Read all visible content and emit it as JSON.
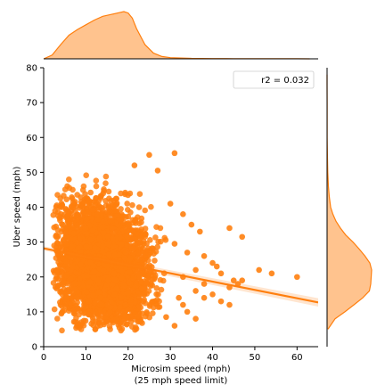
{
  "chart_data": {
    "type": "scatter",
    "title": "",
    "xlabel": "Microsim speed (mph)",
    "xlabel_line2": "(25 mph speed limit)",
    "ylabel": "Uber speed (mph)",
    "xlim": [
      0,
      65
    ],
    "ylim": [
      0,
      80
    ],
    "xticks": [
      0,
      10,
      20,
      30,
      40,
      50,
      60
    ],
    "yticks": [
      0,
      10,
      20,
      30,
      40,
      50,
      60,
      70,
      80
    ],
    "grid": false,
    "color": "#ff7f0e",
    "kde_fill_color": "#ffc38e",
    "legend": {
      "text": "r2 = 0.032",
      "placement": "top-right"
    },
    "cluster": {
      "description_points": "dense scatter concentrated at x 2-28, y 4-50",
      "x_range": [
        2,
        28
      ],
      "y_range": [
        4,
        50
      ]
    },
    "outliers": [
      {
        "x": 31,
        "y": 55.5
      },
      {
        "x": 25,
        "y": 55
      },
      {
        "x": 27,
        "y": 50.5
      },
      {
        "x": 21.5,
        "y": 52
      },
      {
        "x": 30,
        "y": 41
      },
      {
        "x": 33,
        "y": 38
      },
      {
        "x": 35,
        "y": 35
      },
      {
        "x": 37,
        "y": 33
      },
      {
        "x": 44,
        "y": 34
      },
      {
        "x": 47,
        "y": 31.5
      },
      {
        "x": 31,
        "y": 29.5
      },
      {
        "x": 34,
        "y": 27
      },
      {
        "x": 38,
        "y": 26
      },
      {
        "x": 40,
        "y": 24
      },
      {
        "x": 42,
        "y": 21
      },
      {
        "x": 41,
        "y": 23
      },
      {
        "x": 36,
        "y": 22
      },
      {
        "x": 33,
        "y": 20
      },
      {
        "x": 38,
        "y": 18
      },
      {
        "x": 44,
        "y": 17
      },
      {
        "x": 45,
        "y": 19
      },
      {
        "x": 46,
        "y": 18
      },
      {
        "x": 47,
        "y": 19
      },
      {
        "x": 51,
        "y": 22
      },
      {
        "x": 54,
        "y": 21
      },
      {
        "x": 60,
        "y": 20
      },
      {
        "x": 44,
        "y": 12
      },
      {
        "x": 40,
        "y": 15
      },
      {
        "x": 36,
        "y": 16
      },
      {
        "x": 32,
        "y": 14
      },
      {
        "x": 36,
        "y": 8
      },
      {
        "x": 33,
        "y": 12
      },
      {
        "x": 29,
        "y": 8.5
      },
      {
        "x": 31,
        "y": 6
      },
      {
        "x": 34,
        "y": 10
      },
      {
        "x": 38,
        "y": 14
      },
      {
        "x": 42,
        "y": 13
      }
    ],
    "regression": {
      "x": [
        0,
        65
      ],
      "y": [
        28.2,
        12.7
      ],
      "ci_halfwidth": [
        0.6,
        1.2
      ]
    },
    "marginal_x_kde": {
      "x": [
        0,
        2,
        4,
        6,
        8,
        10,
        12,
        14,
        16,
        18,
        19,
        20,
        21,
        22,
        24,
        26,
        28,
        30,
        35,
        40,
        45,
        50,
        55,
        60,
        63
      ],
      "density": [
        0.0,
        0.08,
        0.3,
        0.5,
        0.62,
        0.72,
        0.82,
        0.9,
        0.94,
        0.98,
        1.0,
        0.97,
        0.86,
        0.64,
        0.3,
        0.12,
        0.05,
        0.025,
        0.01,
        0.006,
        0.004,
        0.003,
        0.002,
        0.001,
        0.0
      ]
    },
    "marginal_y_kde": {
      "y": [
        5,
        8,
        10,
        12,
        14,
        16,
        18,
        20,
        22,
        24,
        26,
        28,
        30,
        32,
        34,
        36,
        38,
        40,
        43,
        46,
        50,
        55,
        60,
        65,
        70,
        75,
        78
      ],
      "density": [
        0.02,
        0.18,
        0.4,
        0.6,
        0.8,
        0.95,
        0.98,
        0.99,
        1.0,
        0.96,
        0.85,
        0.72,
        0.58,
        0.42,
        0.3,
        0.2,
        0.13,
        0.08,
        0.05,
        0.03,
        0.015,
        0.007,
        0.003,
        0.002,
        0.001,
        0.0005,
        0.0
      ]
    }
  }
}
